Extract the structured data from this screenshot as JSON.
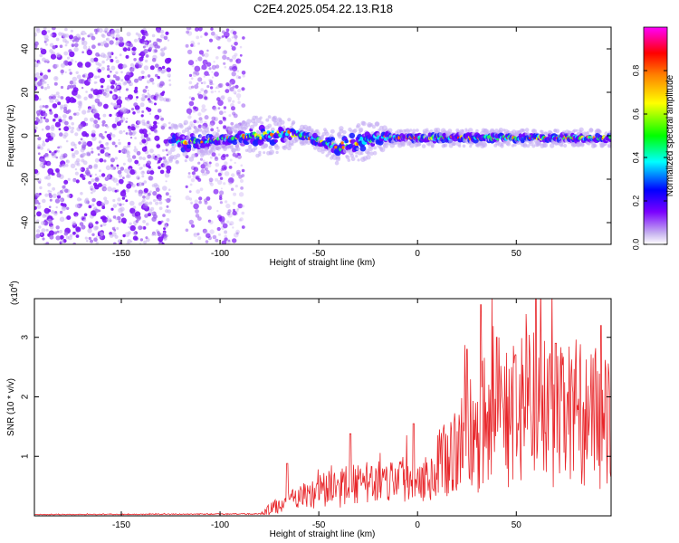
{
  "title": "C2E4.2025.054.22.13.R18",
  "chart_data": [
    {
      "type": "heatmap",
      "xlabel": "Height of straight line (km)",
      "ylabel": "Frequency (Hz)",
      "xlim": [
        -194,
        98
      ],
      "ylim": [
        -50,
        50
      ],
      "xticks": [
        -150,
        -100,
        -50,
        0,
        50
      ],
      "xtick_labels": [
        "-150",
        "-100",
        "-50",
        "0",
        "50"
      ],
      "yticks": [
        -40,
        -20,
        0,
        20,
        40
      ],
      "ytick_labels": [
        "-40",
        "-20",
        "0",
        "20",
        "40"
      ],
      "colorbar": {
        "label": "Normalized spectral amplitude",
        "range": [
          0,
          1
        ],
        "ticks": [
          0.0,
          0.2,
          0.4,
          0.6,
          0.8
        ],
        "tick_labels": [
          "0.0",
          "0.2",
          "0.4",
          "0.6",
          "0.8"
        ]
      },
      "ridge_center_hz": [
        [
          -125,
          -3
        ],
        [
          -100,
          -2
        ],
        [
          -80,
          0
        ],
        [
          -60,
          1
        ],
        [
          -50,
          -2
        ],
        [
          -40,
          -5
        ],
        [
          -30,
          -3
        ],
        [
          -20,
          -1
        ],
        [
          -10,
          -1
        ],
        [
          0,
          -1
        ],
        [
          25,
          -1
        ],
        [
          50,
          -1
        ],
        [
          75,
          -1
        ],
        [
          95,
          -1
        ]
      ],
      "noise_x_ranges": [
        [
          -194,
          -125
        ],
        [
          -117,
          -88
        ]
      ]
    },
    {
      "type": "line",
      "xlabel": "Height of straight line (km)",
      "ylabel": "SNR (10 * v/v)",
      "multiplier_label": "(x10",
      "multiplier_exp": "4",
      "multiplier_close": ")",
      "xlim": [
        -194,
        98
      ],
      "ylim": [
        0,
        3.65
      ],
      "xticks": [
        -150,
        -100,
        -50,
        0,
        50
      ],
      "xtick_labels": [
        "-150",
        "-100",
        "-50",
        "0",
        "50"
      ],
      "yticks": [
        1,
        2,
        3
      ],
      "ytick_labels": [
        "1",
        "2",
        "3"
      ],
      "envelope": {
        "x": [
          -194,
          -80,
          -75,
          -60,
          -40,
          -30,
          -20,
          -10,
          0,
          10,
          20,
          30,
          40,
          50,
          60,
          70,
          80,
          90,
          98
        ],
        "mean": [
          0.02,
          0.03,
          0.1,
          0.3,
          0.45,
          0.5,
          0.55,
          0.6,
          0.6,
          0.7,
          1.1,
          1.4,
          1.5,
          1.6,
          1.8,
          1.5,
          1.7,
          1.4,
          1.5
        ],
        "amp": [
          0.005,
          0.01,
          0.1,
          0.2,
          0.35,
          0.35,
          0.35,
          0.4,
          0.4,
          0.5,
          0.8,
          1.2,
          1.2,
          1.2,
          1.3,
          1.2,
          1.2,
          1.2,
          1.1
        ]
      },
      "peaks": [
        [
          -66,
          0.88
        ],
        [
          -34,
          1.38
        ],
        [
          -2,
          1.55
        ],
        [
          25,
          2.8
        ],
        [
          32,
          3.55
        ],
        [
          40,
          3.0
        ],
        [
          60,
          3.65
        ],
        [
          70,
          2.9
        ],
        [
          93,
          3.2
        ]
      ]
    }
  ]
}
